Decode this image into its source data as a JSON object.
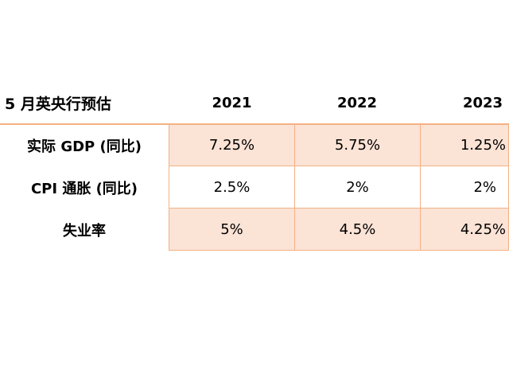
{
  "table": {
    "title": "5 月英央行预估",
    "years": [
      "2021",
      "2022",
      "2023"
    ],
    "rows": [
      {
        "label": "实际 GDP (同比)",
        "values": [
          "7.25%",
          "5.75%",
          "1.25%"
        ],
        "shaded": true
      },
      {
        "label": "CPI 通胀 (同比)",
        "values": [
          "2.5%",
          "2%",
          "2%"
        ],
        "shaded": false
      },
      {
        "label": "失业率",
        "values": [
          "5%",
          "4.5%",
          "4.25%"
        ],
        "shaded": true
      }
    ]
  },
  "colors": {
    "border": "#f4b183",
    "shade": "#fbe3d6"
  }
}
